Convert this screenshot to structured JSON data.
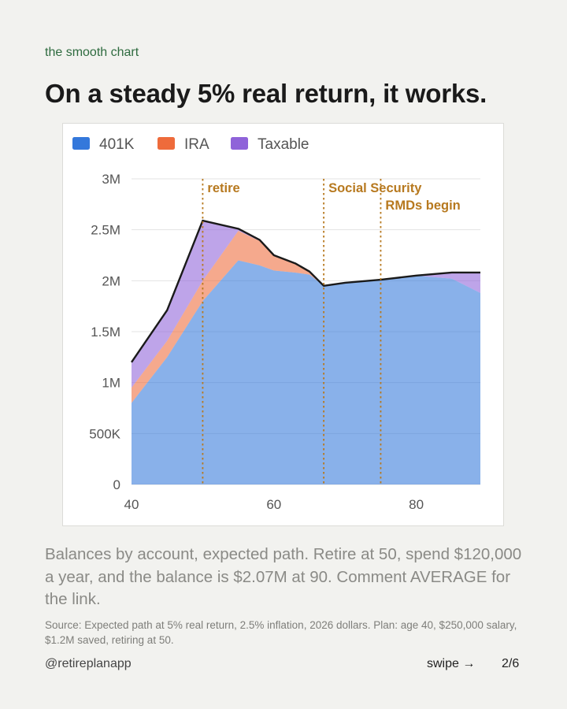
{
  "kicker": "the smooth chart",
  "headline": "On a steady 5% real return, it works.",
  "chart_data": {
    "type": "area",
    "stacked": true,
    "legend": [
      {
        "label": "401K",
        "color": "#3478db"
      },
      {
        "label": "IRA",
        "color": "#ee6b3b"
      },
      {
        "label": "Taxable",
        "color": "#8f63d9"
      }
    ],
    "legend_position": "top-left",
    "grid": true,
    "x": [
      40,
      45,
      50,
      55,
      58,
      60,
      63,
      65,
      67,
      70,
      75,
      80,
      85,
      89
    ],
    "xlim": [
      40,
      89
    ],
    "x_ticks": [
      40,
      60,
      80
    ],
    "x_tick_labels": [
      "40",
      "60",
      "80"
    ],
    "ylim": [
      0,
      3000000
    ],
    "y_ticks": [
      0,
      500000,
      1000000,
      1500000,
      2000000,
      2500000,
      3000000
    ],
    "y_tick_labels": [
      "0",
      "500K",
      "1M",
      "1.5M",
      "2M",
      "2.5M",
      "3M"
    ],
    "series": [
      {
        "name": "401K",
        "color": "#3478db",
        "values": [
          800000,
          1250000,
          1800000,
          2200000,
          2150000,
          2100000,
          2080000,
          2060000,
          1950000,
          1980000,
          2010000,
          2050000,
          2020000,
          1880000
        ]
      },
      {
        "name": "IRA",
        "color": "#ee6b3b",
        "values": [
          150000,
          160000,
          200000,
          290000,
          240000,
          150000,
          90000,
          30000,
          0,
          0,
          0,
          0,
          0,
          0
        ]
      },
      {
        "name": "Taxable",
        "color": "#8f63d9",
        "values": [
          250000,
          300000,
          590000,
          20000,
          10000,
          0,
          0,
          0,
          0,
          0,
          0,
          0,
          60000,
          200000
        ]
      }
    ],
    "annotations": [
      {
        "x": 50,
        "label": "retire",
        "row": 1
      },
      {
        "x": 67,
        "label": "Social Security",
        "row": 1
      },
      {
        "x": 75,
        "label": "RMDs begin",
        "row": 2
      }
    ],
    "annotation_color": "#b7791f"
  },
  "caption": "Balances by account, expected path. Retire at 50, spend $120,000 a year, and the balance is $2.07M at 90. Comment AVERAGE for the link.",
  "source": "Source: Expected path at 5% real return, 2.5% inflation, 2026 dollars. Plan: age 40, $250,000 salary, $1.2M saved, retiring at 50.",
  "footer": {
    "handle": "@retireplanapp",
    "swipe": "swipe →",
    "page": "2/6"
  }
}
